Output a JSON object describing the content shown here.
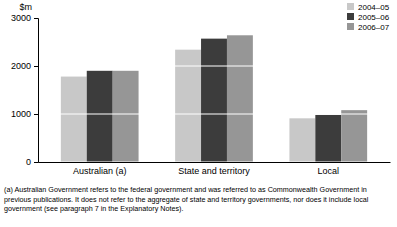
{
  "chart_data": {
    "type": "bar",
    "y_label": "$m",
    "categories": [
      "Australian (a)",
      "State and territory",
      "Local"
    ],
    "series": [
      {
        "name": "2004–05",
        "color": "#c8c8c8",
        "values": [
          1780,
          2340,
          910
        ]
      },
      {
        "name": "2005–06",
        "color": "#3c3c3c",
        "values": [
          1900,
          2570,
          980
        ]
      },
      {
        "name": "2006–07",
        "color": "#969696",
        "values": [
          1900,
          2640,
          1080
        ]
      }
    ],
    "ylim": [
      0,
      3000
    ],
    "yticks": [
      0,
      1000,
      2000,
      3000
    ],
    "grid": true,
    "legend": "upper right",
    "annotations": [
      "(a) Australian Government refers to the federal government and was referred to as Commonwealth Government in previous publications. It does not refer to the aggregate of state and territory governments, nor does it include local government (see paragraph 7 in the Explanatory Notes)."
    ]
  }
}
